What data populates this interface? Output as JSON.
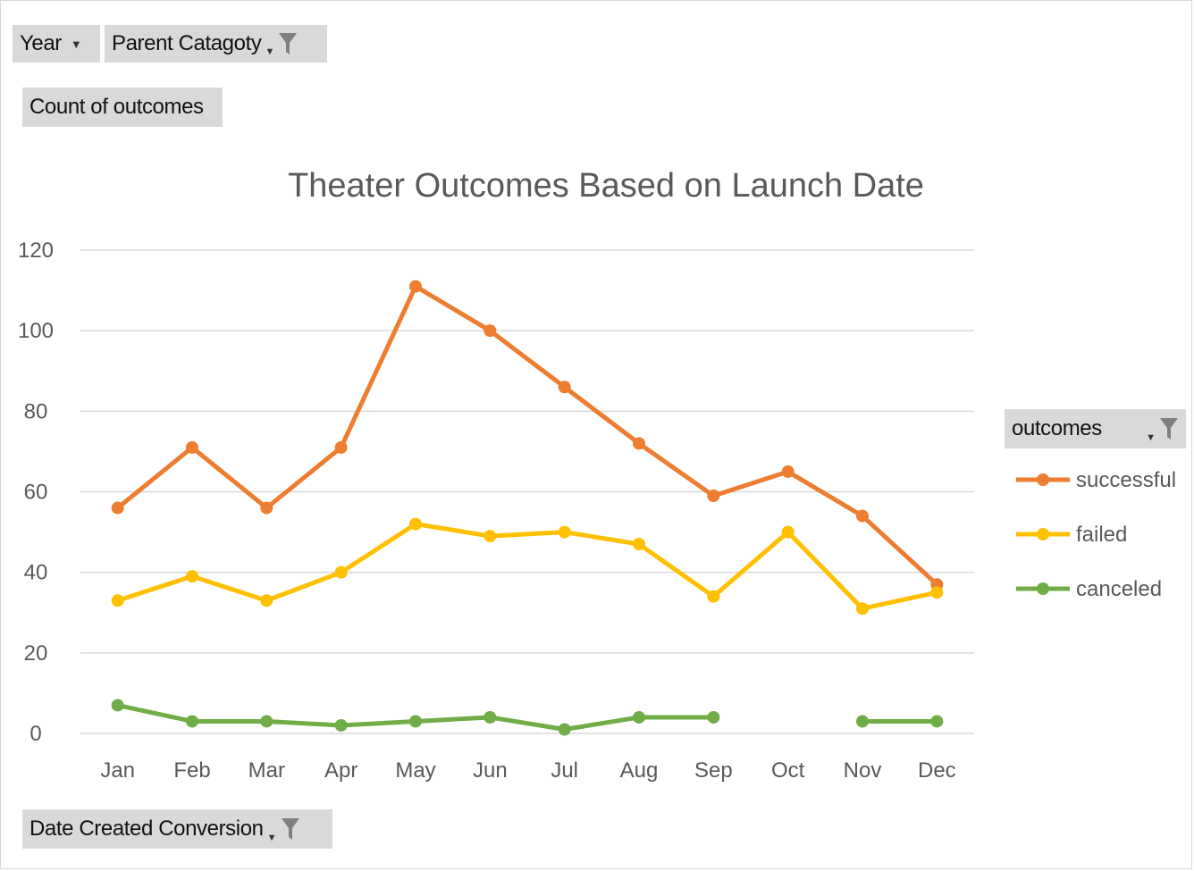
{
  "filters": {
    "year_label": "Year",
    "parent_category_label": "Parent Catagoty",
    "value_field_label": "Count of outcomes",
    "axis_field_label": "Date Created Conversion",
    "legend_field_label": "outcomes"
  },
  "icons": {
    "dropdown": "chevron-down-icon",
    "filter": "filter-icon"
  },
  "chart_data": {
    "type": "line",
    "title": "Theater Outcomes Based on Launch Date",
    "xlabel": "",
    "ylabel": "",
    "ylim": [
      0,
      120
    ],
    "yticks": [
      0,
      20,
      40,
      60,
      80,
      100,
      120
    ],
    "grid": true,
    "legend_position": "right",
    "categories": [
      "Jan",
      "Feb",
      "Mar",
      "Apr",
      "May",
      "Jun",
      "Jul",
      "Aug",
      "Sep",
      "Oct",
      "Nov",
      "Dec"
    ],
    "series": [
      {
        "name": "successful",
        "color": "#ED7D31",
        "values": [
          56,
          71,
          56,
          71,
          111,
          100,
          86,
          72,
          59,
          65,
          54,
          37
        ]
      },
      {
        "name": "failed",
        "color": "#FFC000",
        "values": [
          33,
          39,
          33,
          40,
          52,
          49,
          50,
          47,
          34,
          50,
          31,
          35
        ]
      },
      {
        "name": "canceled",
        "color": "#70AD47",
        "values": [
          7,
          3,
          3,
          2,
          3,
          4,
          1,
          4,
          4,
          null,
          3,
          3
        ]
      }
    ]
  }
}
